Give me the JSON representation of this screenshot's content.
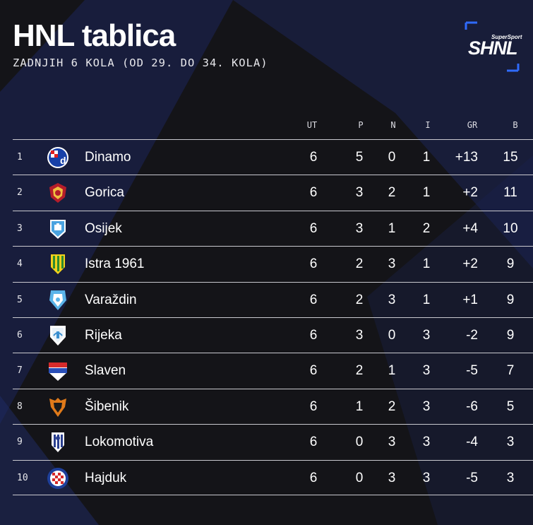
{
  "title": "HNL tablica",
  "subtitle": "ZADNJIH 6 KOLA (OD 29. DO 34. KOLA)",
  "logo": {
    "top": "SuperSport",
    "main": "SHNL"
  },
  "columns": {
    "ut": "UT",
    "p": "P",
    "n": "N",
    "i": "I",
    "gr": "GR",
    "b": "B"
  },
  "rows": [
    {
      "rank": "1",
      "team": "Dinamo",
      "crest": "dinamo-crest-icon",
      "ut": "6",
      "p": "5",
      "n": "0",
      "i": "1",
      "gr": "+13",
      "b": "15"
    },
    {
      "rank": "2",
      "team": "Gorica",
      "crest": "gorica-crest-icon",
      "ut": "6",
      "p": "3",
      "n": "2",
      "i": "1",
      "gr": "+2",
      "b": "11"
    },
    {
      "rank": "3",
      "team": "Osijek",
      "crest": "osijek-crest-icon",
      "ut": "6",
      "p": "3",
      "n": "1",
      "i": "2",
      "gr": "+4",
      "b": "10"
    },
    {
      "rank": "4",
      "team": "Istra 1961",
      "crest": "istra-crest-icon",
      "ut": "6",
      "p": "2",
      "n": "3",
      "i": "1",
      "gr": "+2",
      "b": "9"
    },
    {
      "rank": "5",
      "team": "Varaždin",
      "crest": "varazdin-crest-icon",
      "ut": "6",
      "p": "2",
      "n": "3",
      "i": "1",
      "gr": "+1",
      "b": "9"
    },
    {
      "rank": "6",
      "team": "Rijeka",
      "crest": "rijeka-crest-icon",
      "ut": "6",
      "p": "3",
      "n": "0",
      "i": "3",
      "gr": "-2",
      "b": "9"
    },
    {
      "rank": "7",
      "team": "Slaven",
      "crest": "slaven-crest-icon",
      "ut": "6",
      "p": "2",
      "n": "1",
      "i": "3",
      "gr": "-5",
      "b": "7"
    },
    {
      "rank": "8",
      "team": "Šibenik",
      "crest": "sibenik-crest-icon",
      "ut": "6",
      "p": "1",
      "n": "2",
      "i": "3",
      "gr": "-6",
      "b": "5"
    },
    {
      "rank": "9",
      "team": "Lokomotiva",
      "crest": "lokomotiva-crest-icon",
      "ut": "6",
      "p": "0",
      "n": "3",
      "i": "3",
      "gr": "-4",
      "b": "3"
    },
    {
      "rank": "10",
      "team": "Hajduk",
      "crest": "hajduk-crest-icon",
      "ut": "6",
      "p": "0",
      "n": "3",
      "i": "3",
      "gr": "-5",
      "b": "3"
    }
  ],
  "colors": {
    "background": "#141418",
    "accent_blue": "#2f6bff",
    "panel_navy": "#1c2a66"
  }
}
